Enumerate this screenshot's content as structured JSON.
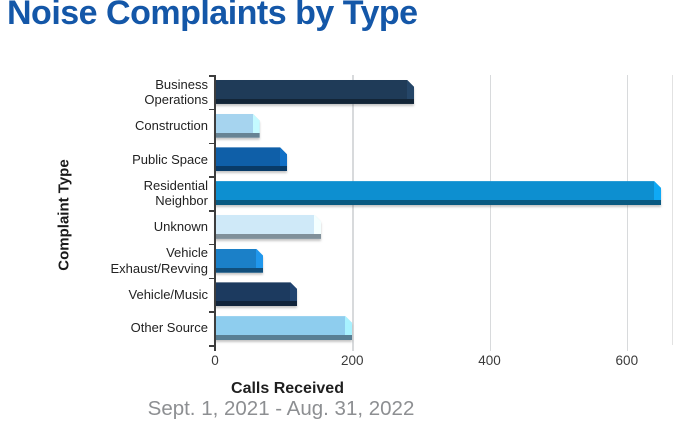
{
  "title": "Noise Complaints by Type",
  "subtitle": "Sept. 1, 2021 - Aug. 31, 2022",
  "chart_data": {
    "type": "bar",
    "orientation": "horizontal",
    "title": "Noise Complaints by Type",
    "xlabel": "Calls Received",
    "ylabel": "Complaint Type",
    "subtitle": "Sept. 1, 2021 - Aug. 31, 2022",
    "categories": [
      "Business Operations",
      "Construction",
      "Public Space",
      "Residential Neighbor",
      "Unknown",
      "Vehicle Exhaust/Revving",
      "Vehicle/Music",
      "Other Source"
    ],
    "values": [
      290,
      65,
      105,
      650,
      155,
      70,
      120,
      200
    ],
    "bar_colors": [
      "#1f3b58",
      "#a6d4ef",
      "#0f5fa8",
      "#0d8fd0",
      "#cfe9f8",
      "#1b80c8",
      "#1c3a5f",
      "#8ecdee"
    ],
    "xlim": [
      0,
      660
    ],
    "xticks": [
      "0",
      "200",
      "400",
      "600"
    ],
    "xtick_values": [
      0,
      200,
      400,
      600
    ],
    "grid": true,
    "legend": false,
    "bar_style": "3d-beveled"
  },
  "colors": {
    "title": "#1457a8",
    "subtitle": "#8d8f92",
    "axis": "#3d3d3d",
    "grid": "#d8dadc"
  }
}
